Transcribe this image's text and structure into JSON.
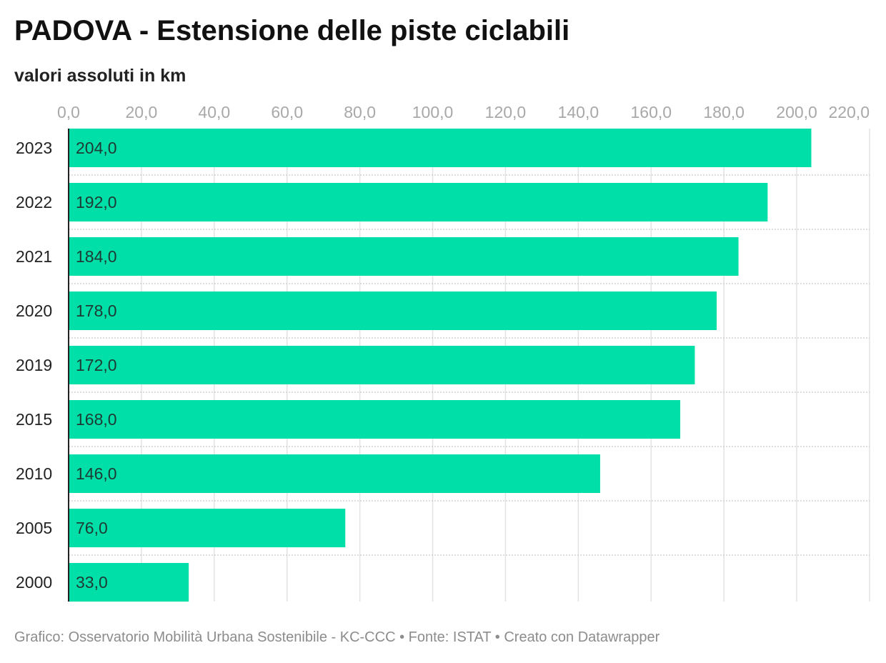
{
  "header": {
    "title": "PADOVA - Estensione delle piste ciclabili",
    "subtitle": "valori assoluti in km"
  },
  "footer": {
    "text": "Grafico: Osservatorio Mobilità Urbana Sostenibile - KC-CCC • Fonte: ISTAT • Creato con Datawrapper"
  },
  "chart_data": {
    "type": "bar",
    "orientation": "horizontal",
    "title": "PADOVA - Estensione delle piste ciclabili",
    "subtitle": "valori assoluti in km",
    "categories": [
      "2023",
      "2022",
      "2021",
      "2020",
      "2019",
      "2015",
      "2010",
      "2005",
      "2000"
    ],
    "values": [
      204.0,
      192.0,
      184.0,
      178.0,
      172.0,
      168.0,
      146.0,
      76.0,
      33.0
    ],
    "value_labels": [
      "204,0",
      "192,0",
      "184,0",
      "178,0",
      "172,0",
      "168,0",
      "146,0",
      "76,0",
      "33,0"
    ],
    "xlim": [
      0,
      220
    ],
    "x_ticks": [
      0,
      20,
      40,
      60,
      80,
      100,
      120,
      140,
      160,
      180,
      200,
      220
    ],
    "x_tick_labels": [
      "0,0",
      "20,0",
      "40,0",
      "60,0",
      "80,0",
      "100,0",
      "120,0",
      "140,0",
      "160,0",
      "180,0",
      "200,0",
      "220,0"
    ],
    "x_axis_position": "top",
    "grid": true,
    "legend": "none",
    "bar_color": "#00dfa7"
  }
}
